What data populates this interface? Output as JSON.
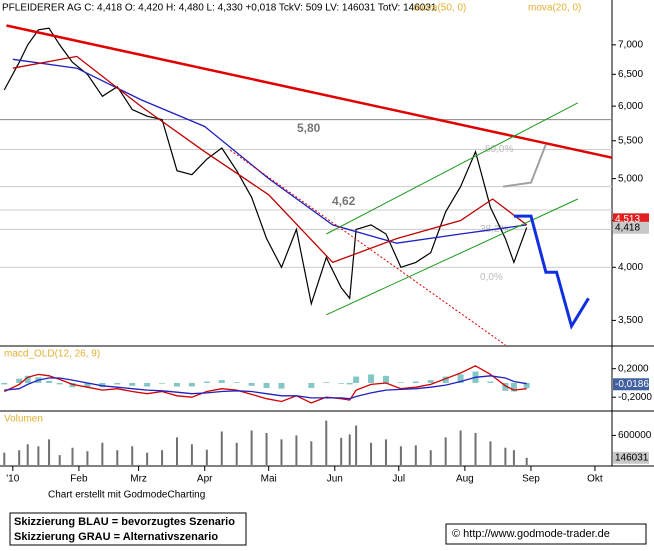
{
  "chart_data": [
    {
      "type": "line",
      "title": "PFLEIDERER AG C: 4,418 O: 4,420 H: 4,480 L: 4,330 +0,018 TckV: 509 LV: 146031 TotV: 146031",
      "x": [
        -4,
        3,
        7,
        12,
        17,
        22,
        28,
        35,
        42,
        49,
        56,
        63,
        70,
        77,
        84,
        91,
        98,
        105,
        112,
        119,
        126,
        133,
        140,
        147,
        154,
        158,
        161,
        168,
        175,
        182,
        189,
        196,
        203,
        210,
        217,
        224,
        231,
        235,
        241
      ],
      "xlim": [
        -6,
        281
      ],
      "xticks": [
        {
          "value": 0,
          "label": "'10"
        },
        {
          "value": 31,
          "label": "Feb"
        },
        {
          "value": 59,
          "label": "Mrz"
        },
        {
          "value": 90,
          "label": "Apr"
        },
        {
          "value": 120,
          "label": "Mai"
        },
        {
          "value": 151,
          "label": "Jun"
        },
        {
          "value": 181,
          "label": "Jul"
        },
        {
          "value": 212,
          "label": "Aug"
        },
        {
          "value": 243,
          "label": "Sep"
        },
        {
          "value": 273,
          "label": "Okt"
        }
      ],
      "ylim": [
        3.29,
        7.68
      ],
      "log_scale": true,
      "yticks": [
        {
          "value": 3.5,
          "label": "3,500"
        },
        {
          "value": 4,
          "label": "4,000"
        },
        {
          "value": 4.5,
          "label": "4,500"
        },
        {
          "value": 5,
          "label": "5,000"
        },
        {
          "value": 5.5,
          "label": "5,500"
        },
        {
          "value": 6,
          "label": "6,000"
        },
        {
          "value": 6.5,
          "label": "6,500"
        },
        {
          "value": 7,
          "label": "7,000"
        }
      ],
      "series": [
        {
          "color": "#000000",
          "values": [
            6.25,
            6.7,
            7.0,
            7.27,
            7.3,
            7.0,
            6.7,
            6.5,
            6.15,
            6.3,
            5.95,
            5.85,
            5.8,
            5.1,
            5.05,
            5.25,
            5.4,
            5.1,
            4.77,
            4.3,
            4.0,
            4.4,
            3.65,
            4.1,
            3.8,
            3.7,
            4.4,
            4.45,
            4.35,
            4.0,
            4.05,
            4.15,
            4.6,
            4.9,
            5.35,
            4.65,
            4.3,
            4.05,
            4.42
          ]
        },
        {
          "name": "mova(50, 0)",
          "color": "#2020c0",
          "x": [
            0,
            30,
            60,
            90,
            120,
            150,
            180,
            210,
            241
          ],
          "values": [
            6.75,
            6.6,
            6.1,
            5.7,
            5.0,
            4.45,
            4.25,
            4.35,
            4.45
          ]
        },
        {
          "name": "mova(20, 0)",
          "color": "#c00000",
          "x": [
            0,
            30,
            60,
            90,
            120,
            150,
            180,
            210,
            225,
            241
          ],
          "values": [
            6.6,
            6.8,
            6.0,
            5.35,
            4.8,
            4.05,
            4.3,
            4.5,
            4.75,
            4.45
          ]
        }
      ],
      "levels": [
        {
          "value": 5.8,
          "label": "5,80"
        },
        {
          "value": 4.62,
          "label": "4,62"
        },
        {
          "value": 5.38,
          "label": "60,0%"
        },
        {
          "value": 4.4,
          "label": "38,2%"
        },
        {
          "value": 4.0,
          "label": "0,0%"
        },
        {
          "value": 4.9
        }
      ],
      "trendlines": [
        {
          "color": "#e00000",
          "width": 2.5,
          "x": [
            -3,
            281
          ],
          "y": [
            7.35,
            5.27
          ]
        },
        {
          "color": "#1a9a1a",
          "width": 1,
          "x": [
            147,
            265
          ],
          "y": [
            3.55,
            4.75
          ]
        },
        {
          "color": "#1a9a1a",
          "width": 1,
          "x": [
            147,
            265
          ],
          "y": [
            4.35,
            6.05
          ]
        },
        {
          "color": "#e00000",
          "width": 1,
          "dashed": true,
          "x": [
            102,
            231
          ],
          "y": [
            5.37,
            3.29
          ]
        },
        {
          "color": "#1030e0",
          "width": 3,
          "x": [
            235,
            243,
            250,
            255,
            262,
            270
          ],
          "y": [
            4.55,
            4.55,
            3.95,
            3.95,
            3.45,
            3.7
          ]
        },
        {
          "color": "#a0a0a0",
          "width": 2,
          "x": [
            230,
            243,
            250
          ],
          "y": [
            4.9,
            4.95,
            5.45
          ]
        }
      ],
      "marker": {
        "value": 4.513,
        "label": "4,513"
      },
      "last": {
        "value": 4.418,
        "label": "4,418"
      }
    },
    {
      "type": "line",
      "title": "macd_OLD(12, 26, 9)",
      "x": [
        -4,
        3,
        7,
        12,
        17,
        22,
        28,
        35,
        42,
        49,
        56,
        63,
        70,
        77,
        84,
        91,
        98,
        105,
        112,
        119,
        126,
        133,
        140,
        147,
        154,
        158,
        161,
        168,
        175,
        182,
        189,
        196,
        203,
        210,
        217,
        224,
        231,
        235,
        241
      ],
      "ylim": [
        -0.379,
        0.476
      ],
      "yticks": [
        {
          "value": 0.2,
          "label": "0,2000"
        },
        {
          "value": -0.2,
          "label": "-0,2000"
        }
      ],
      "series": [
        {
          "type": "bar",
          "color": "#30a0a0",
          "values": [
            -0.02,
            0.06,
            0.1,
            0.08,
            0.03,
            -0.02,
            -0.06,
            -0.06,
            -0.06,
            -0.02,
            -0.04,
            -0.05,
            -0.01,
            -0.05,
            -0.05,
            0.02,
            0.04,
            0.01,
            -0.04,
            -0.07,
            -0.08,
            0.0,
            -0.07,
            0.01,
            -0.01,
            -0.02,
            0.09,
            0.12,
            0.1,
            0.01,
            0.02,
            0.04,
            0.09,
            0.12,
            0.16,
            0.02,
            -0.11,
            -0.12,
            -0.07
          ]
        },
        {
          "color": "#d00000",
          "values": [
            -0.12,
            -0.02,
            0.08,
            0.12,
            0.1,
            0.05,
            -0.02,
            -0.06,
            -0.1,
            -0.08,
            -0.12,
            -0.15,
            -0.12,
            -0.18,
            -0.2,
            -0.12,
            -0.08,
            -0.1,
            -0.16,
            -0.22,
            -0.26,
            -0.18,
            -0.28,
            -0.2,
            -0.22,
            -0.24,
            -0.1,
            -0.02,
            0.0,
            -0.08,
            -0.06,
            -0.02,
            0.06,
            0.14,
            0.24,
            0.12,
            -0.04,
            -0.1,
            -0.08
          ]
        },
        {
          "color": "#2020c0",
          "values": [
            -0.1,
            -0.08,
            -0.02,
            0.04,
            0.07,
            0.07,
            0.04,
            0.0,
            -0.04,
            -0.06,
            -0.08,
            -0.1,
            -0.11,
            -0.13,
            -0.15,
            -0.14,
            -0.12,
            -0.11,
            -0.12,
            -0.15,
            -0.18,
            -0.18,
            -0.21,
            -0.21,
            -0.21,
            -0.22,
            -0.19,
            -0.14,
            -0.1,
            -0.09,
            -0.08,
            -0.06,
            -0.03,
            0.02,
            0.08,
            0.1,
            0.07,
            0.02,
            -0.01
          ]
        }
      ],
      "last": {
        "value": -0.0186,
        "label": "-0,0186"
      }
    },
    {
      "type": "bar",
      "title": "Volumen",
      "x": [
        -4,
        3,
        7,
        12,
        17,
        22,
        28,
        35,
        42,
        49,
        56,
        63,
        70,
        77,
        84,
        91,
        98,
        105,
        112,
        119,
        126,
        133,
        140,
        147,
        154,
        158,
        161,
        168,
        175,
        182,
        189,
        196,
        203,
        210,
        217,
        224,
        231,
        235,
        241
      ],
      "ylim": [
        0,
        1075000
      ],
      "yticks": [
        600000
      ],
      "color": "#707070",
      "values": [
        250000,
        300000,
        420000,
        380000,
        520000,
        200000,
        350000,
        280000,
        450000,
        300000,
        380000,
        250000,
        300000,
        560000,
        420000,
        310000,
        680000,
        450000,
        700000,
        650000,
        520000,
        600000,
        480000,
        900000,
        550000,
        620000,
        800000,
        450000,
        520000,
        380000,
        400000,
        300000,
        560000,
        700000,
        650000,
        480000,
        350000,
        300000,
        146031
      ],
      "last": 146031
    }
  ],
  "footer": {
    "credit": "Chart erstellt mit GodmodeCharting",
    "legend_blue": "Skizzierung BLAU = bevorzugtes Szenario",
    "legend_gray": "Skizzierung GRAU = Alternativszenario",
    "url": "© http://www.godmode-trader.de"
  }
}
